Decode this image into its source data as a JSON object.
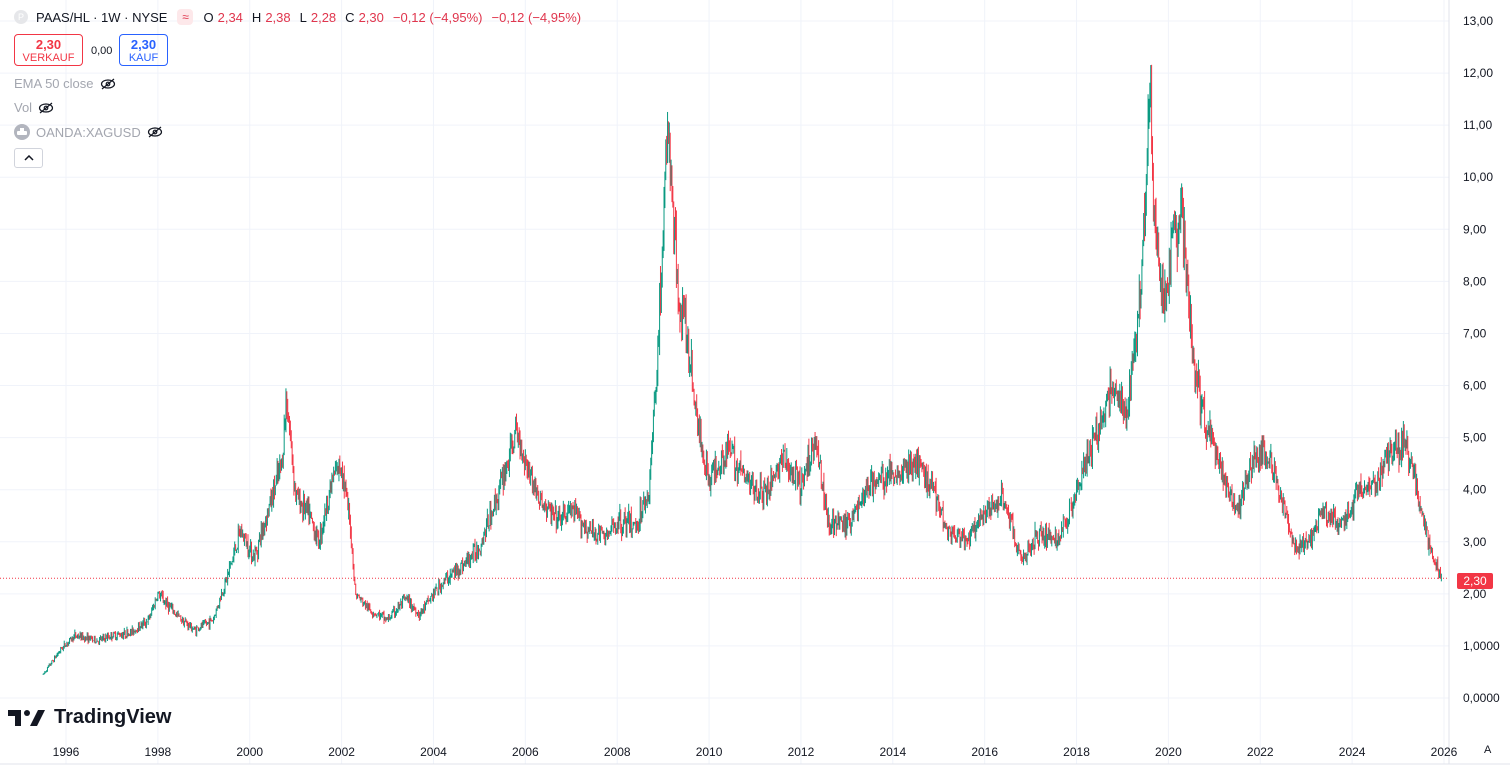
{
  "legend": {
    "symbol_icon": "P",
    "title": "PAAS/HL · 1W · NYSE",
    "badge_icon": "≈",
    "open_label": "O",
    "open": "2,34",
    "high_label": "H",
    "high": "2,38",
    "low_label": "L",
    "low": "2,28",
    "close_label": "C",
    "close": "2,30",
    "change": "−0,12 (−4,95%)",
    "change2": "−0,12 (−4,95%)"
  },
  "trade": {
    "sell_price": "2,30",
    "sell_label": "VERKAUF",
    "spread": "0,00",
    "buy_price": "2,30",
    "buy_label": "KAUF"
  },
  "indicators": [
    "EMA 50 close",
    "Vol",
    "OANDA:XAGUSD"
  ],
  "brand": "TradingView",
  "last_price_tag": "2,30",
  "axis_corner": "A",
  "colors": {
    "up": "#089981",
    "down": "#f23645",
    "last_line": "#f23645"
  },
  "chart_data": {
    "type": "candlestick",
    "interval": "1W",
    "ylim": [
      0,
      13
    ],
    "y_ticks": [
      "0,0000",
      "1,0000",
      "2,00",
      "3,00",
      "4,00",
      "5,00",
      "6,00",
      "7,00",
      "8,00",
      "9,00",
      "10,00",
      "11,00",
      "12,00",
      "13,00"
    ],
    "x_ticks": [
      "1996",
      "1998",
      "2000",
      "2002",
      "2004",
      "2006",
      "2008",
      "2010",
      "2012",
      "2014",
      "2016",
      "2018",
      "2020",
      "2022",
      "2024",
      "2026"
    ],
    "x_range": [
      1995.4,
      2026.0
    ],
    "last_close": 2.3,
    "approx_series": {
      "x": [
        1995.5,
        1995.9,
        1996.2,
        1996.7,
        1997.0,
        1997.4,
        1997.8,
        1998.0,
        1998.4,
        1998.8,
        1999.2,
        1999.5,
        1999.8,
        2000.1,
        2000.4,
        2000.7,
        2000.8,
        2001.0,
        2001.3,
        2001.5,
        2001.8,
        2002.0,
        2002.2,
        2002.3,
        2002.6,
        2003.0,
        2003.4,
        2003.7,
        2004.0,
        2004.3,
        2004.7,
        2005.0,
        2005.4,
        2005.8,
        2006.0,
        2006.3,
        2006.7,
        2007.0,
        2007.4,
        2007.8,
        2008.0,
        2008.4,
        2008.7,
        2008.9,
        2009.1,
        2009.3,
        2009.5,
        2009.8,
        2010.0,
        2010.4,
        2010.8,
        2011.2,
        2011.6,
        2012.0,
        2012.3,
        2012.6,
        2013.0,
        2013.5,
        2014.0,
        2014.5,
        2014.9,
        2015.2,
        2015.6,
        2016.0,
        2016.4,
        2016.8,
        2017.2,
        2017.6,
        2018.0,
        2018.4,
        2018.8,
        2019.1,
        2019.4,
        2019.6,
        2019.7,
        2019.9,
        2020.1,
        2020.3,
        2020.5,
        2020.7,
        2020.9,
        2021.2,
        2021.5,
        2021.8,
        2022.1,
        2022.4,
        2022.7,
        2023.0,
        2023.4,
        2023.8,
        2024.1,
        2024.5,
        2024.8,
        2025.1,
        2025.3,
        2025.5,
        2025.7,
        2025.85,
        2025.95
      ],
      "y": [
        0.45,
        0.95,
        1.2,
        1.1,
        1.2,
        1.25,
        1.5,
        2.0,
        1.6,
        1.3,
        1.5,
        2.3,
        3.2,
        2.7,
        3.6,
        4.5,
        5.8,
        3.9,
        3.5,
        3.0,
        4.2,
        4.5,
        3.2,
        2.0,
        1.7,
        1.5,
        1.9,
        1.6,
        2.0,
        2.3,
        2.6,
        2.9,
        3.9,
        5.1,
        4.6,
        3.8,
        3.4,
        3.6,
        3.2,
        3.1,
        3.4,
        3.3,
        4.0,
        7.0,
        11.0,
        8.0,
        7.0,
        5.0,
        4.2,
        4.8,
        4.2,
        3.9,
        4.6,
        4.0,
        5.0,
        3.4,
        3.3,
        4.1,
        4.3,
        4.5,
        4.0,
        3.2,
        3.0,
        3.5,
        3.9,
        2.6,
        3.2,
        3.0,
        4.0,
        5.0,
        6.0,
        5.3,
        8.0,
        11.8,
        9.0,
        7.5,
        8.8,
        9.2,
        6.8,
        5.6,
        5.0,
        4.2,
        3.6,
        4.5,
        4.8,
        4.0,
        3.0,
        2.9,
        3.6,
        3.3,
        3.9,
        4.1,
        4.7,
        4.9,
        4.6,
        3.6,
        2.8,
        2.5,
        2.3
      ]
    }
  }
}
